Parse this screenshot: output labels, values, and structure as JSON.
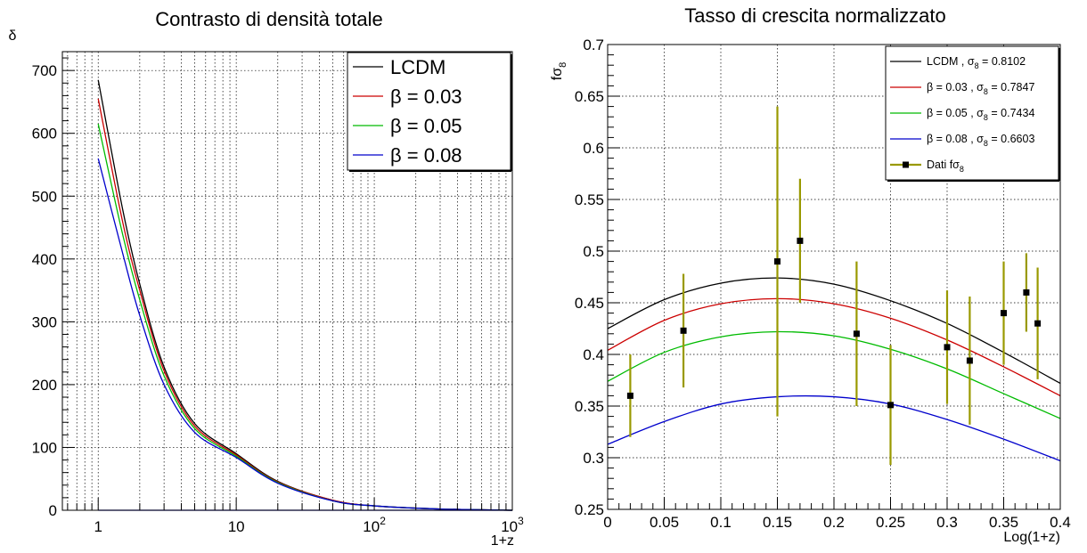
{
  "chart_data": [
    {
      "type": "line",
      "title": "Contrasto di densità totale",
      "xlabel": "1+z",
      "ylabel": "δ",
      "xscale": "log",
      "xlim": [
        0.55,
        1000
      ],
      "ylim": [
        0,
        730
      ],
      "x_tick_labels": [
        {
          "value": 1,
          "base": "1",
          "exp": ""
        },
        {
          "value": 10,
          "base": "10",
          "exp": ""
        },
        {
          "value": 100,
          "base": "10",
          "exp": "2"
        },
        {
          "value": 1000,
          "base": "10",
          "exp": "3"
        }
      ],
      "y_ticks": [
        0,
        100,
        200,
        300,
        400,
        500,
        600,
        700
      ],
      "grid": true,
      "legend_position": "top-right",
      "series": [
        {
          "name": "LCDM",
          "color": "#000000",
          "x": [
            1,
            1.5,
            2,
            3,
            5,
            10,
            20,
            50,
            100,
            300,
            1000
          ],
          "y": [
            685,
            480,
            360,
            228,
            138,
            90,
            46,
            16,
            7,
            2,
            0
          ]
        },
        {
          "name": "β = 0.03",
          "color": "#cc0000",
          "x": [
            1,
            1.5,
            2,
            3,
            5,
            10,
            20,
            50,
            100,
            300,
            1000
          ],
          "y": [
            655,
            460,
            350,
            222,
            134,
            88,
            45,
            16,
            7,
            2,
            0
          ]
        },
        {
          "name": "β = 0.05",
          "color": "#00bb00",
          "x": [
            1,
            1.5,
            2,
            3,
            5,
            10,
            20,
            50,
            100,
            300,
            1000
          ],
          "y": [
            615,
            440,
            335,
            214,
            130,
            86,
            44,
            15,
            7,
            2,
            0
          ]
        },
        {
          "name": "β = 0.08",
          "color": "#0000cc",
          "x": [
            1,
            1.5,
            2,
            3,
            5,
            10,
            20,
            50,
            100,
            300,
            1000
          ],
          "y": [
            560,
            410,
            310,
            200,
            124,
            84,
            43,
            15,
            7,
            2,
            0
          ]
        }
      ]
    },
    {
      "type": "line",
      "title": "Tasso di crescita normalizzato",
      "xlabel": "Log(1+z)",
      "ylabel_main": "fσ",
      "ylabel_sub": "8",
      "xlim": [
        0,
        0.4
      ],
      "ylim": [
        0.25,
        0.7
      ],
      "x_ticks": [
        0,
        0.05,
        0.1,
        0.15,
        0.2,
        0.25,
        0.3,
        0.35,
        0.4
      ],
      "x_tick_labels": [
        "0",
        "0.05",
        "0.1",
        "0.15",
        "0.2",
        "0.25",
        "0.3",
        "0.35",
        "0.4"
      ],
      "y_ticks": [
        0.25,
        0.3,
        0.35,
        0.4,
        0.45,
        0.5,
        0.55,
        0.6,
        0.65,
        0.7
      ],
      "y_tick_labels": [
        "0.25",
        "0.3",
        "0.35",
        "0.4",
        "0.45",
        "0.5",
        "0.55",
        "0.6",
        "0.65",
        "0.7"
      ],
      "grid": true,
      "legend_position": "top-right",
      "series": [
        {
          "label_pre": "LCDM , σ",
          "label_sub": "8",
          "label_post": " = 0.8102",
          "color": "#000000",
          "x": [
            0,
            0.05,
            0.1,
            0.15,
            0.2,
            0.25,
            0.3,
            0.35,
            0.4
          ],
          "y": [
            0.425,
            0.453,
            0.469,
            0.474,
            0.468,
            0.452,
            0.43,
            0.402,
            0.372
          ]
        },
        {
          "label_pre": "β = 0.03 , σ",
          "label_sub": "8",
          "label_post": " = 0.7847",
          "color": "#cc0000",
          "x": [
            0,
            0.05,
            0.1,
            0.15,
            0.2,
            0.25,
            0.3,
            0.35,
            0.4
          ],
          "y": [
            0.404,
            0.433,
            0.449,
            0.454,
            0.449,
            0.435,
            0.414,
            0.388,
            0.36
          ]
        },
        {
          "label_pre": "β = 0.05 , σ",
          "label_sub": "8",
          "label_post": " = 0.7434",
          "color": "#00bb00",
          "x": [
            0,
            0.05,
            0.1,
            0.15,
            0.2,
            0.25,
            0.3,
            0.35,
            0.4
          ],
          "y": [
            0.374,
            0.402,
            0.417,
            0.422,
            0.418,
            0.405,
            0.386,
            0.362,
            0.338
          ]
        },
        {
          "label_pre": "β = 0.08 , σ",
          "label_sub": "8",
          "label_post": " = 0.6603",
          "color": "#0000cc",
          "x": [
            0,
            0.05,
            0.1,
            0.15,
            0.2,
            0.25,
            0.3,
            0.35,
            0.4
          ],
          "y": [
            0.313,
            0.335,
            0.352,
            0.359,
            0.359,
            0.352,
            0.337,
            0.318,
            0.297
          ]
        }
      ],
      "data_series": {
        "label_pre": "Dati fσ",
        "label_sub": "8",
        "label_post": "",
        "color": "#999900",
        "points": [
          {
            "x": 0.02,
            "y": 0.36,
            "err": 0.04
          },
          {
            "x": 0.067,
            "y": 0.423,
            "err": 0.055
          },
          {
            "x": 0.15,
            "y": 0.49,
            "err": 0.15
          },
          {
            "x": 0.17,
            "y": 0.51,
            "err": 0.06
          },
          {
            "x": 0.22,
            "y": 0.42,
            "err": 0.07
          },
          {
            "x": 0.25,
            "y": 0.351,
            "err": 0.058
          },
          {
            "x": 0.3,
            "y": 0.407,
            "err": 0.055
          },
          {
            "x": 0.32,
            "y": 0.394,
            "err": 0.062
          },
          {
            "x": 0.35,
            "y": 0.44,
            "err": 0.05
          },
          {
            "x": 0.37,
            "y": 0.46,
            "err": 0.038
          },
          {
            "x": 0.38,
            "y": 0.43,
            "err": 0.054
          }
        ]
      }
    }
  ]
}
